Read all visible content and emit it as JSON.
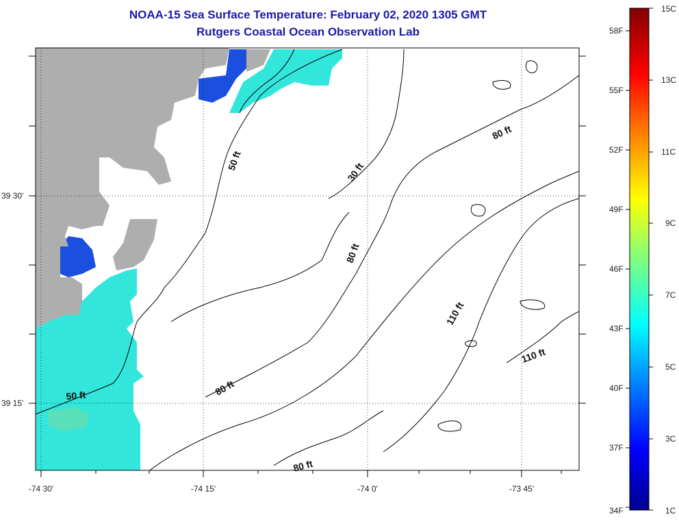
{
  "header": {
    "title": "NOAA-15 Sea Surface Temperature:  February 02, 2020 1305 GMT",
    "subtitle": "Rutgers Coastal Ocean Observation Lab"
  },
  "axes": {
    "lon_labels": [
      "-74 30'",
      "-74 15'",
      "-74 0'",
      "-73 45'"
    ],
    "lat_labels": [
      "39 30'",
      "39 15'"
    ]
  },
  "contour_labels": [
    "50 ft",
    "30 ft",
    "80 ft",
    "80 ft",
    "110 ft",
    "110 ft",
    "80 ft",
    "80 ft",
    "50 ft"
  ],
  "colorbar": {
    "celsius_labels": [
      "15C",
      "13C",
      "11C",
      "9C",
      "7C",
      "5C",
      "3C",
      "1C"
    ],
    "fahrenheit_labels": [
      "58F",
      "55F",
      "52F",
      "49F",
      "46F",
      "43F",
      "40F",
      "37F",
      "34F"
    ],
    "min_c": 1,
    "max_c": 15
  },
  "colors": {
    "land": "#aeaeae",
    "warm_water": "#33e6dc",
    "cold_water": "#1a4fe0",
    "title": "#1a1aa8"
  }
}
